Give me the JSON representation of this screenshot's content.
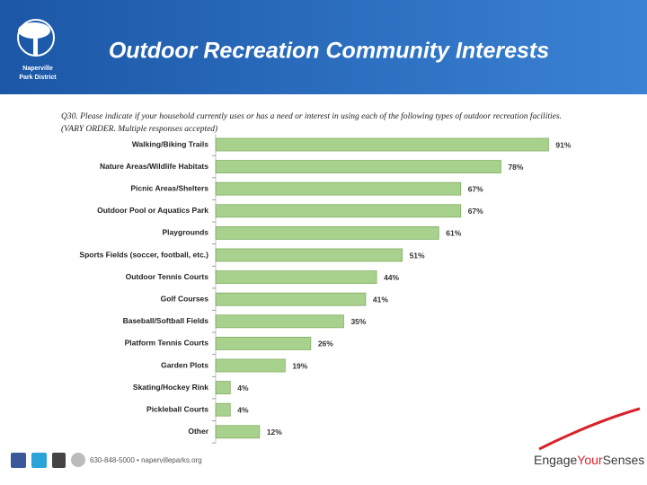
{
  "header": {
    "title": "Outdoor Recreation Community Interests",
    "logo": [
      "Naperville",
      "Park District"
    ]
  },
  "question": [
    "Q30.  Please indicate if your household currently uses or has a need or interest in using each of the following types of outdoor recreation facilities.",
    "(VARY ORDER. Multiple responses accepted)"
  ],
  "chart_data": {
    "type": "hbar",
    "categories": [
      "Walking/Biking Trails",
      "Nature Areas/Wildlife Habitats",
      "Picnic Areas/Shelters",
      "Outdoor Pool or Aquatics Park",
      "Playgrounds",
      "Sports Fields (soccer, football, etc.)",
      "Outdoor Tennis Courts",
      "Golf Courses",
      "Baseball/Softball Fields",
      "Platform Tennis Courts",
      "Garden Plots",
      "Skating/Hockey Rink",
      "Pickleball Courts",
      "Other"
    ],
    "values": [
      91,
      78,
      67,
      67,
      61,
      51,
      44,
      41,
      35,
      26,
      19,
      4,
      4,
      12
    ],
    "value_labels": [
      "91%",
      "78%",
      "67%",
      "67%",
      "61%",
      "51%",
      "44%",
      "41%",
      "35%",
      "26%",
      "19%",
      "4%",
      "4%",
      "12%"
    ],
    "color": "#a9d18e"
  },
  "footer": {
    "contact": "630-848-5000 • napervilleparks.org",
    "brand": [
      "Engage",
      "Your",
      "Senses"
    ]
  }
}
